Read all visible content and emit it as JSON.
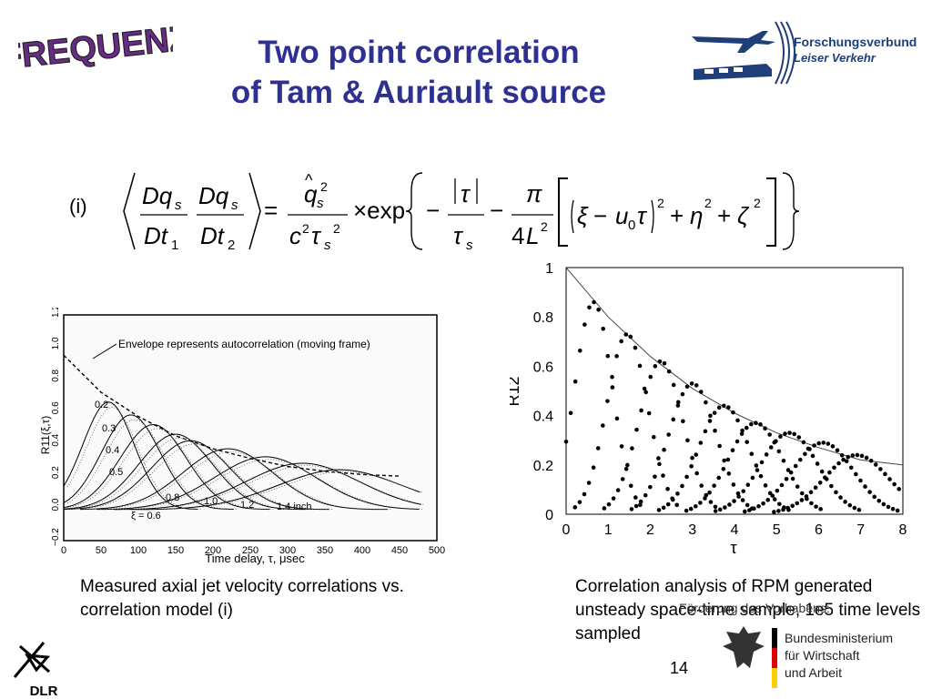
{
  "header": {
    "logo_text": "FREQUENZ",
    "title_line1": "Two point correlation",
    "title_line2": "of Tam & Auriault source",
    "partner_line1": "Forschungsverbund",
    "partner_line2": "Leiser Verkehr"
  },
  "equation": {
    "label": "(i)"
  },
  "left_figure": {
    "annotation": "Envelope represents autocorrelation (moving frame)",
    "xi_labels": [
      "0.2",
      "0.3",
      "0.4",
      "0.5",
      "0.8",
      "1.0",
      "1.2",
      "1.4 inch"
    ],
    "xi_first": "ξ = 0.6",
    "xlabel": "Time delay, τ, μsec",
    "ylabel": "R11(ξ,τ)",
    "xticks": [
      "0",
      "50",
      "100",
      "150",
      "200",
      "250",
      "300",
      "350",
      "400",
      "450",
      "500"
    ],
    "yticks": [
      "1.2",
      "1.0",
      "0.8",
      "0.6",
      "0.4",
      "0.2",
      "0.0",
      "−0.2"
    ],
    "caption": "Measured axial jet velocity correlations vs. correlation model (i)"
  },
  "right_figure": {
    "xlabel": "τ",
    "ylabel": "R12",
    "xticks": [
      "0",
      "1",
      "2",
      "3",
      "4",
      "5",
      "6",
      "7",
      "8"
    ],
    "yticks": [
      "1",
      "0.8",
      "0.6",
      "0.4",
      "0.2",
      "0"
    ],
    "caption": "Correlation analysis of RPM generated unsteady space-time sample, 1e5 time levels sampled"
  },
  "footer": {
    "sponsor_label": "Förderung des Vorhabens:",
    "sponsor_line1": "Bundesministerium",
    "sponsor_line2": "für Wirtschaft",
    "sponsor_line3": "und Arbeit",
    "page_number": "14",
    "dlr": "DLR"
  },
  "chart_data": [
    {
      "type": "line",
      "title": "",
      "xlabel": "Time delay, τ, μsec",
      "ylabel": "R11(ξ,τ)",
      "xlim": [
        0,
        500
      ],
      "ylim": [
        -0.2,
        1.2
      ],
      "series": [
        {
          "name": "envelope",
          "x": [
            0,
            50,
            100,
            150,
            200,
            250,
            300,
            350,
            400,
            450
          ],
          "values": [
            0.95,
            0.72,
            0.57,
            0.45,
            0.37,
            0.31,
            0.26,
            0.23,
            0.21,
            0.2
          ]
        },
        {
          "name": "0.2",
          "peak_x": 60,
          "peak_y": 0.66
        },
        {
          "name": "0.3",
          "peak_x": 90,
          "peak_y": 0.58
        },
        {
          "name": "0.4",
          "peak_x": 120,
          "peak_y": 0.52
        },
        {
          "name": "0.5",
          "peak_x": 150,
          "peak_y": 0.46
        },
        {
          "name": "0.6",
          "peak_x": 170,
          "peak_y": 0.42
        },
        {
          "name": "0.8",
          "peak_x": 220,
          "peak_y": 0.37
        },
        {
          "name": "1.0",
          "peak_x": 270,
          "peak_y": 0.32
        },
        {
          "name": "1.2",
          "peak_x": 320,
          "peak_y": 0.28
        },
        {
          "name": "1.4 inch",
          "peak_x": 370,
          "peak_y": 0.24
        }
      ]
    },
    {
      "type": "scatter",
      "xlabel": "τ",
      "ylabel": "R12",
      "xlim": [
        0,
        8
      ],
      "ylim": [
        0,
        1
      ],
      "envelope": {
        "x": [
          0,
          1,
          2,
          3,
          4,
          5,
          6,
          7,
          8
        ],
        "values": [
          1.0,
          0.8,
          0.64,
          0.51,
          0.41,
          0.33,
          0.27,
          0.22,
          0.2
        ]
      },
      "peaks": [
        {
          "x": 0.65,
          "y": 0.86
        },
        {
          "x": 1.45,
          "y": 0.73
        },
        {
          "x": 2.25,
          "y": 0.62
        },
        {
          "x": 3.0,
          "y": 0.53
        },
        {
          "x": 3.75,
          "y": 0.44
        },
        {
          "x": 4.5,
          "y": 0.37
        },
        {
          "x": 5.3,
          "y": 0.33
        },
        {
          "x": 6.1,
          "y": 0.29
        },
        {
          "x": 6.9,
          "y": 0.24
        }
      ]
    }
  ]
}
